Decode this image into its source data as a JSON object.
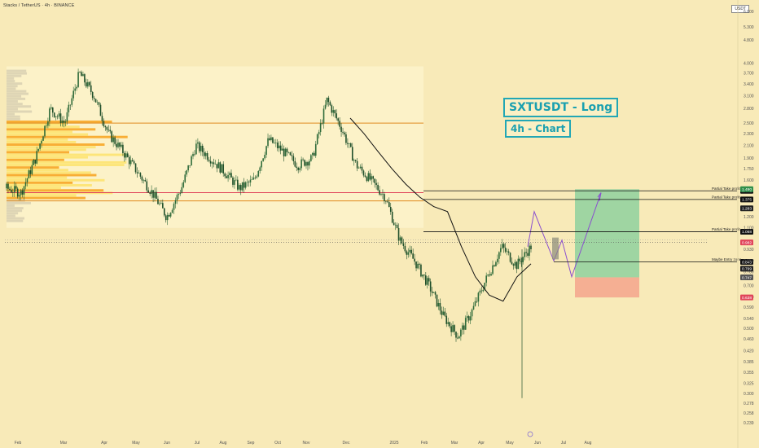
{
  "header": {
    "symbol": "Stacks / TetherUS · 4h · BINANCE"
  },
  "currency_badge": "USDT",
  "annotations": {
    "title": "SXTUSDT - Long",
    "subtitle": "4h - Chart"
  },
  "colors": {
    "background": "#f8eab8",
    "candle_up": "#2f6b3a",
    "candle_down": "#2f6b3a",
    "ma_line": "#111111",
    "volume_profile": "#f7a21b",
    "volume_profile_light": "#fde36b",
    "resistance_orange": "#e08a1e",
    "resistance_red": "#e0445a",
    "target_zone": "#8fd19e",
    "stop_zone": "#f4a98f",
    "projection": "#8a4fcf",
    "accent": "#22a7b5"
  },
  "chart_data": {
    "type": "candlestick",
    "scale": "log",
    "ylim": [
      0.22,
      6.0
    ],
    "y_ticks": [
      "6.000",
      "5.300",
      "4.800",
      "4.000",
      "3.700",
      "3.400",
      "3.100",
      "2.800",
      "2.500",
      "2.300",
      "2.100",
      "1.900",
      "1.750",
      "1.600",
      "1.200",
      "1.100",
      "0.930",
      "0.850",
      "0.780",
      "0.700",
      "0.640",
      "0.590",
      "0.540",
      "0.500",
      "0.460",
      "0.420",
      "0.385",
      "0.355",
      "0.325",
      "0.300",
      "0.278",
      "0.258",
      "0.239"
    ],
    "x_ticks": [
      "Feb",
      "Mar",
      "Apr",
      "May",
      "Jun",
      "Jul",
      "Aug",
      "Sep",
      "Oct",
      "Nov",
      "Dec",
      "2025",
      "Feb",
      "Mar",
      "Apr",
      "May",
      "Jun",
      "Jul",
      "Aug"
    ],
    "levels": [
      {
        "label": "Partial Take profit",
        "value": 1.471,
        "badge": "1.471"
      },
      {
        "label": "Partial Take profit",
        "value": 1.375,
        "badge": "1.375"
      },
      {
        "label": "Partial Take profit",
        "value": 1.068,
        "badge": "1.068"
      },
      {
        "label": "Maybe Entry zone",
        "value": 0.843,
        "badge": "0.843"
      }
    ],
    "price_badges": [
      {
        "text": "1.490",
        "value": 1.49,
        "color": "#2f8f4a"
      },
      {
        "text": "1.283",
        "value": 1.283,
        "color": "#222222"
      },
      {
        "text": "0.982",
        "value": 0.982,
        "color": "#e0445a"
      },
      {
        "text": "0.799",
        "value": 0.799,
        "color": "#222222"
      },
      {
        "text": "0.747",
        "value": 0.747,
        "color": "#555555"
      },
      {
        "text": "0.638",
        "value": 0.638,
        "color": "#e0445a"
      }
    ],
    "horizontal_lines": [
      {
        "value": 2.5,
        "color": "orange"
      },
      {
        "value": 1.45,
        "color": "red"
      },
      {
        "value": 1.36,
        "color": "orange"
      }
    ],
    "target_zone": {
      "top": 1.49,
      "bottom": 0.747
    },
    "stop_zone": {
      "top": 0.747,
      "bottom": 0.638
    },
    "price_path": [
      1.5,
      1.45,
      1.9,
      2.8,
      2.5,
      3.7,
      3.1,
      2.3,
      2.0,
      1.7,
      1.45,
      1.2,
      1.5,
      2.1,
      1.9,
      1.7,
      1.5,
      1.6,
      2.2,
      2.0,
      1.8,
      1.9,
      3.0,
      2.4,
      1.8,
      1.6,
      1.4,
      1.0,
      0.85,
      0.7,
      0.55,
      0.47,
      0.58,
      0.75,
      0.95,
      0.82,
      0.95
    ],
    "moving_average": [
      2.6,
      2.3,
      2.0,
      1.75,
      1.55,
      1.4,
      1.3,
      1.25,
      0.95,
      0.75,
      0.65,
      0.62,
      0.75,
      0.83
    ],
    "projection_path": [
      0.95,
      1.25,
      0.85,
      1.0,
      0.75,
      1.45
    ]
  }
}
